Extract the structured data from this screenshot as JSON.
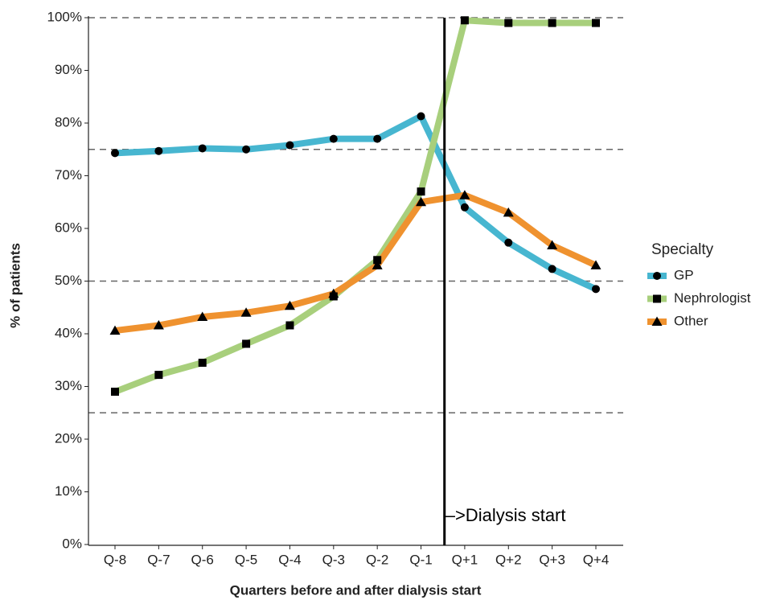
{
  "chart_data": {
    "type": "line",
    "x_title": "Quarters before and after dialysis start",
    "y_title": "% of patients",
    "categories": [
      "Q-8",
      "Q-7",
      "Q-6",
      "Q-5",
      "Q-4",
      "Q-3",
      "Q-2",
      "Q-1",
      "Q+1",
      "Q+2",
      "Q+3",
      "Q+4"
    ],
    "series": [
      {
        "name": "GP",
        "color": "#47b6d0",
        "marker": "circle",
        "values": [
          74.3,
          74.7,
          75.2,
          75.0,
          75.8,
          77.0,
          77.0,
          81.3,
          64.0,
          57.3,
          52.3,
          48.5
        ]
      },
      {
        "name": "Nephrologist",
        "color": "#a8cf7c",
        "marker": "square",
        "values": [
          29.0,
          32.2,
          34.5,
          38.1,
          41.6,
          47.1,
          54.0,
          67.0,
          99.5,
          99.0,
          99.0,
          99.0
        ]
      },
      {
        "name": "Other",
        "color": "#ef922f",
        "marker": "triangle",
        "values": [
          40.6,
          41.6,
          43.2,
          44.0,
          45.3,
          47.6,
          53.0,
          65.0,
          66.3,
          63.0,
          56.8,
          53.0
        ]
      }
    ],
    "legend_title": "Specialty",
    "legend_position": "right",
    "ylim": [
      0,
      100
    ],
    "yticks": [
      {
        "value": 0,
        "label": "0%"
      },
      {
        "value": 10,
        "label": "10%"
      },
      {
        "value": 20,
        "label": "20%"
      },
      {
        "value": 30,
        "label": "30%"
      },
      {
        "value": 40,
        "label": "40%"
      },
      {
        "value": 50,
        "label": "50%"
      },
      {
        "value": 60,
        "label": "60%"
      },
      {
        "value": 70,
        "label": "70%"
      },
      {
        "value": 80,
        "label": "80%"
      },
      {
        "value": 90,
        "label": "90%"
      },
      {
        "value": 100,
        "label": "100%"
      }
    ],
    "reference_lines": [
      25,
      50,
      75,
      100
    ],
    "annotation": "–>Dialysis start"
  }
}
